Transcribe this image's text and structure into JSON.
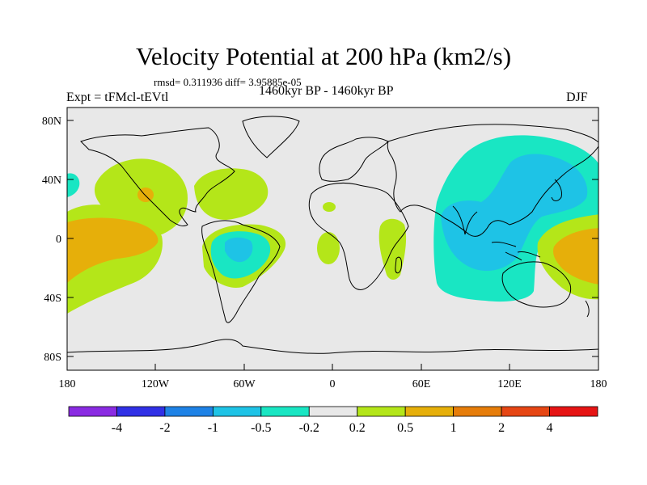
{
  "figure": {
    "title": "Velocity Potential at 200 hPa (km2/s)",
    "stats": "rmsd= 0.311936 diff= 3.95885e-05",
    "period": "1460kyr BP - 1460kyr BP",
    "expt": "Expt = tFMcl-tEVtl",
    "season": "DJF"
  },
  "axes": {
    "y_ticks": [
      "80N",
      "40N",
      "0",
      "40S",
      "80S"
    ],
    "x_ticks": [
      "180",
      "120W",
      "60W",
      "0",
      "60E",
      "120E",
      "180"
    ]
  },
  "colorbar": {
    "colors": [
      "#8a2be2",
      "#3030e6",
      "#1e82e6",
      "#1ec3e6",
      "#19e6c3",
      "#e8e8e8",
      "#b4e619",
      "#e6af0a",
      "#e67d0a",
      "#e64614",
      "#e61414"
    ],
    "labels": [
      "-4",
      "-2",
      "-1",
      "-0.5",
      "-0.2",
      "0.2",
      "0.5",
      "1",
      "2",
      "4"
    ]
  },
  "chart_data": {
    "type": "map-filled-contour",
    "title": "Velocity Potential at 200 hPa (km2/s)",
    "units": "km2/s",
    "levels": [
      -4,
      -2,
      -1,
      -0.5,
      -0.2,
      0.2,
      0.5,
      1,
      2,
      4
    ],
    "lon_range": [
      -180,
      180
    ],
    "lat_range": [
      -90,
      90
    ],
    "features": [
      {
        "region": "Western Pacific / East Asia / Indian Ocean",
        "sign": "negative",
        "range": "-1 to -0.2"
      },
      {
        "region": "Tropical South America",
        "sign": "negative",
        "range": "-1 to -0.2"
      },
      {
        "region": "Central-East Pacific",
        "sign": "positive",
        "range": "0.2 to 1"
      },
      {
        "region": "Western North America / Caribbean",
        "sign": "positive",
        "range": "0.2 to 1"
      },
      {
        "region": "Tropical Atlantic / East Africa",
        "sign": "positive",
        "range": "0.2 to 0.5"
      },
      {
        "region": "Southwest Pacific",
        "sign": "positive",
        "range": "0.5 to 1"
      }
    ]
  }
}
